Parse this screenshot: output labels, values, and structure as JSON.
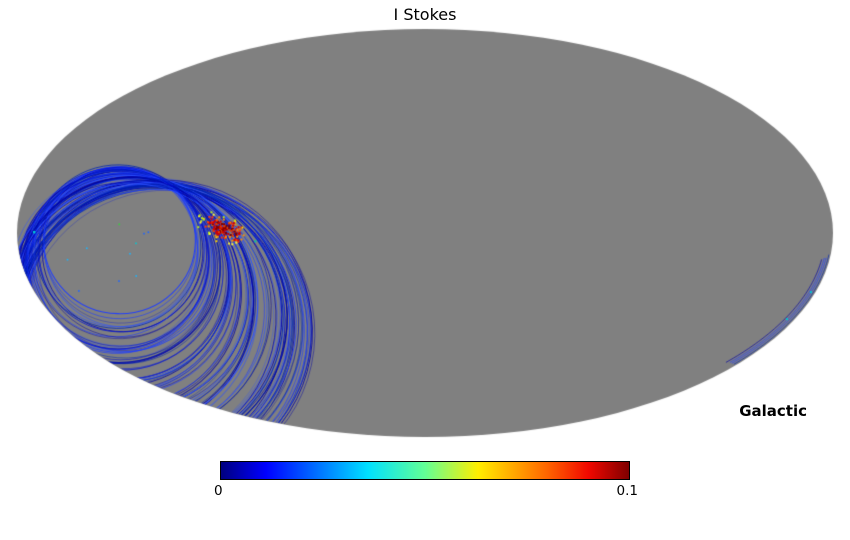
{
  "figure": {
    "title": "I Stokes",
    "coord_label": "Galactic",
    "colorbar": {
      "min_label": "0",
      "max_label": "0.1"
    }
  },
  "chart_data": {
    "type": "heatmap",
    "title": "I Stokes",
    "projection": "mollweide",
    "coordinate_system": "Galactic",
    "colormap": "jet",
    "colorbar_range": [
      0,
      0.1
    ],
    "colorbar_tick_labels": [
      "0",
      "0.1"
    ],
    "unobserved_color": "#808080",
    "background_color": "#ffffff",
    "description": "Partial-sky Mollweide map of Stokes I. Most of the sky is unobserved (gray). A scanning-ring coverage loop in the left hemisphere shows values near 0 (dark blue traces) with a compact bright region reaching the color scale maximum ~0.1 (red/orange), plus a thin observed strip hugging the right edge of the projection.",
    "jet_stops": [
      {
        "pos": 0.0,
        "color": "#00007f"
      },
      {
        "pos": 0.11,
        "color": "#0000ff"
      },
      {
        "pos": 0.36,
        "color": "#00e0ff"
      },
      {
        "pos": 0.5,
        "color": "#62ff95"
      },
      {
        "pos": 0.63,
        "color": "#ffee00"
      },
      {
        "pos": 0.8,
        "color": "#ff6400"
      },
      {
        "pos": 0.9,
        "color": "#f10800"
      },
      {
        "pos": 1.0,
        "color": "#7f0000"
      }
    ],
    "scan_ring": {
      "pivot": [
        170,
        185
      ],
      "theta_deg": [
        92,
        130
      ],
      "radius_px": [
        78,
        148
      ],
      "n_traces": 110,
      "trace_colors": [
        "#0000a8",
        "#0013d6",
        "#1e3cff",
        "#0026b3",
        "#2a50ff"
      ]
    },
    "hotspot": {
      "center": [
        224,
        228
      ],
      "spread": [
        24,
        11
      ],
      "peak_value": 0.1
    },
    "right_edge_strip": {
      "arc_rad_range": [
        0.1,
        0.72
      ],
      "n_arcs": 4
    }
  }
}
